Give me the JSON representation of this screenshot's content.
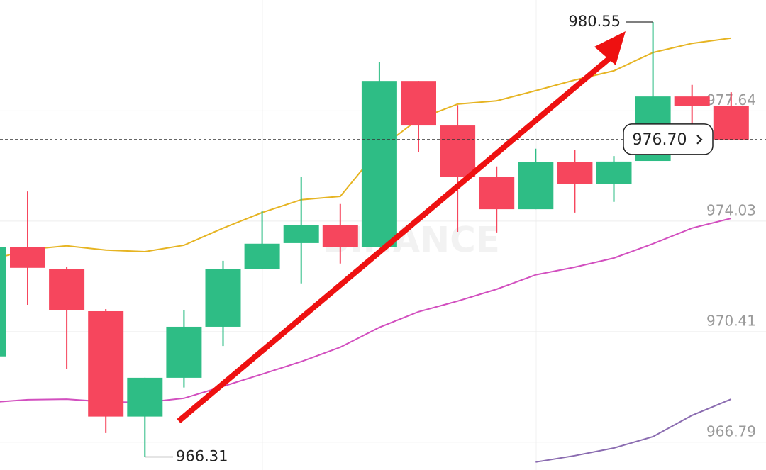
{
  "chart_data": {
    "type": "candlestick",
    "watermark": "BINANCE",
    "ylim": [
      965.88,
      981.27
    ],
    "yticks": [
      977.64,
      974.03,
      970.41,
      966.79
    ],
    "grid": true,
    "up_color": "#2ebd85",
    "down_color": "#f6465d",
    "open": [
      969.6,
      973.19,
      972.47,
      971.08,
      967.63,
      968.9,
      970.57,
      972.45,
      973.31,
      973.89,
      973.19,
      978.62,
      977.16,
      975.49,
      974.42,
      975.96,
      975.24,
      976.0,
      978.11,
      977.81
    ],
    "high": [
      null,
      975.0,
      972.54,
      971.15,
      968.9,
      971.11,
      972.73,
      974.35,
      975.47,
      974.59,
      979.25,
      978.62,
      977.83,
      975.82,
      976.4,
      976.35,
      976.16,
      980.55,
      978.49,
      978.25
    ],
    "low": [
      null,
      971.29,
      969.2,
      967.09,
      966.31,
      968.58,
      969.94,
      972.45,
      971.99,
      972.64,
      973.19,
      976.28,
      973.68,
      973.66,
      974.42,
      974.31,
      974.66,
      976.0,
      977.16,
      976.7
    ],
    "close": [
      973.19,
      972.5,
      971.11,
      967.63,
      968.9,
      970.57,
      972.45,
      973.29,
      973.89,
      973.19,
      978.62,
      977.16,
      975.49,
      974.42,
      975.96,
      975.24,
      975.98,
      978.11,
      977.81,
      976.7
    ],
    "lines": [
      {
        "color": "#e6b422",
        "values": [
          972.73,
          973.1,
          973.22,
          973.08,
          973.03,
          973.24,
          973.8,
          974.31,
          974.73,
          974.84,
          976.4,
          977.37,
          977.86,
          977.97,
          978.3,
          978.65,
          978.95,
          979.55,
          979.85,
          980.02
        ]
      },
      {
        "color": "#d24fbf",
        "values": [
          968.09,
          968.18,
          968.2,
          968.11,
          968.09,
          968.23,
          968.62,
          969.02,
          969.43,
          969.9,
          970.55,
          971.06,
          971.41,
          971.8,
          972.27,
          972.52,
          972.82,
          973.29,
          973.8,
          974.12
        ]
      },
      {
        "color": "#8a6bb0",
        "values": [
          null,
          null,
          null,
          null,
          null,
          null,
          null,
          null,
          null,
          null,
          null,
          null,
          null,
          null,
          966.14,
          966.35,
          966.6,
          966.97,
          967.67,
          968.2
        ]
      }
    ],
    "high_label": 980.55,
    "low_label": 966.31,
    "current_price": {
      "value": 976.7,
      "label": "976.70"
    }
  }
}
